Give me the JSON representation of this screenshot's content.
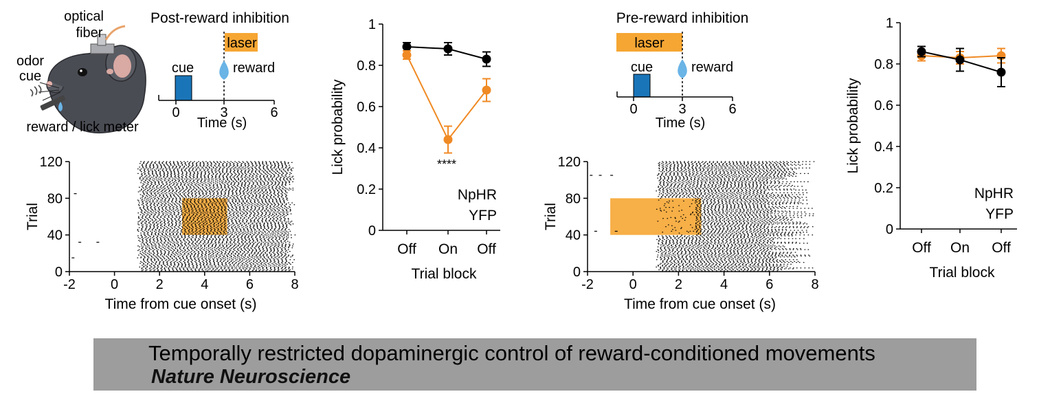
{
  "colors": {
    "npHR": "#f08a24",
    "yfp": "#000000",
    "laser": "#f6a633",
    "cue": "#1a75b8",
    "drop": "#6ab4e6",
    "banner": "#9d9d9d"
  },
  "schematic": {
    "labels": {
      "optical_fiber_line1": "optical",
      "optical_fiber_line2": "fiber",
      "odor_line1": "odor",
      "odor_line2": "cue",
      "reward_meter": "reward / lick meter"
    },
    "post": {
      "title": "Post-reward inhibition",
      "laser": "laser",
      "cue": "cue",
      "reward": "reward",
      "xlabel": "Time (s)",
      "ticks": [
        "0",
        "3",
        "6"
      ]
    },
    "pre": {
      "title": "Pre-reward inhibition",
      "laser": "laser",
      "cue": "cue",
      "reward": "reward",
      "xlabel": "Time (s)",
      "ticks": [
        "0",
        "3",
        "6"
      ]
    }
  },
  "chart_data": [
    {
      "type": "scatter",
      "panel": "post-reward raster",
      "xlabel": "Time from cue onset (s)",
      "ylabel": "Trial",
      "xlim": [
        -2,
        8
      ],
      "ylim": [
        0,
        120
      ],
      "xticks": [
        "-2",
        "0",
        "2",
        "4",
        "6",
        "8"
      ],
      "yticks": [
        "0",
        "40",
        "80",
        "120"
      ],
      "laser_window": {
        "t_start": 3,
        "t_end": 5,
        "trial_start": 40,
        "trial_end": 80
      },
      "lick_onset_s": 1,
      "lick_offset_s": 8,
      "sparse_pre_cue_licks": [
        [
          -1.8,
          85
        ],
        [
          -1.6,
          32
        ],
        [
          -0.8,
          32
        ],
        [
          -1.9,
          15
        ]
      ]
    },
    {
      "type": "line",
      "panel": "post-reward lick probability",
      "categories": [
        "Off",
        "On",
        "Off"
      ],
      "xlabel": "Trial block",
      "ylabel": "Lick probability",
      "ylim": [
        0,
        1
      ],
      "yticks": [
        "0",
        "0.2",
        "0.4",
        "0.6",
        "0.8",
        "1"
      ],
      "series": [
        {
          "name": "YFP",
          "values": [
            0.89,
            0.88,
            0.83
          ],
          "errors": [
            0.02,
            0.03,
            0.035
          ]
        },
        {
          "name": "NpHR",
          "values": [
            0.85,
            0.44,
            0.68
          ],
          "errors": [
            0.02,
            0.065,
            0.055
          ]
        }
      ],
      "annotation": "****",
      "legend": [
        "NpHR",
        "YFP"
      ]
    },
    {
      "type": "scatter",
      "panel": "pre-reward raster",
      "xlabel": "Time from cue onset (s)",
      "ylabel": "Trial",
      "xlim": [
        -2,
        8
      ],
      "ylim": [
        0,
        120
      ],
      "xticks": [
        "-2",
        "0",
        "2",
        "4",
        "6",
        "8"
      ],
      "yticks": [
        "0",
        "40",
        "80",
        "120"
      ],
      "laser_window": {
        "t_start": -1,
        "t_end": 3,
        "trial_start": 40,
        "trial_end": 80
      },
      "lick_onset_s": 1,
      "lick_offset_s": 8,
      "sparse_pre_cue_licks": [
        [
          -1.9,
          105
        ],
        [
          -1.5,
          105
        ],
        [
          -1.0,
          105
        ],
        [
          -1.7,
          44
        ],
        [
          -0.8,
          44
        ]
      ]
    },
    {
      "type": "line",
      "panel": "pre-reward lick probability",
      "categories": [
        "Off",
        "On",
        "Off"
      ],
      "xlabel": "Trial block",
      "ylabel": "Lick probability",
      "ylim": [
        0,
        1
      ],
      "yticks": [
        "0",
        "0.2",
        "0.4",
        "0.6",
        "0.8",
        "1"
      ],
      "series": [
        {
          "name": "YFP",
          "values": [
            0.86,
            0.82,
            0.76
          ],
          "errors": [
            0.025,
            0.055,
            0.07
          ]
        },
        {
          "name": "NpHR",
          "values": [
            0.84,
            0.83,
            0.84
          ],
          "errors": [
            0.025,
            0.03,
            0.035
          ]
        }
      ],
      "legend": [
        "NpHR",
        "YFP"
      ]
    }
  ],
  "banner": {
    "title": "Temporally restricted dopaminergic control of reward-conditioned movements",
    "journal": "Nature Neuroscience"
  }
}
